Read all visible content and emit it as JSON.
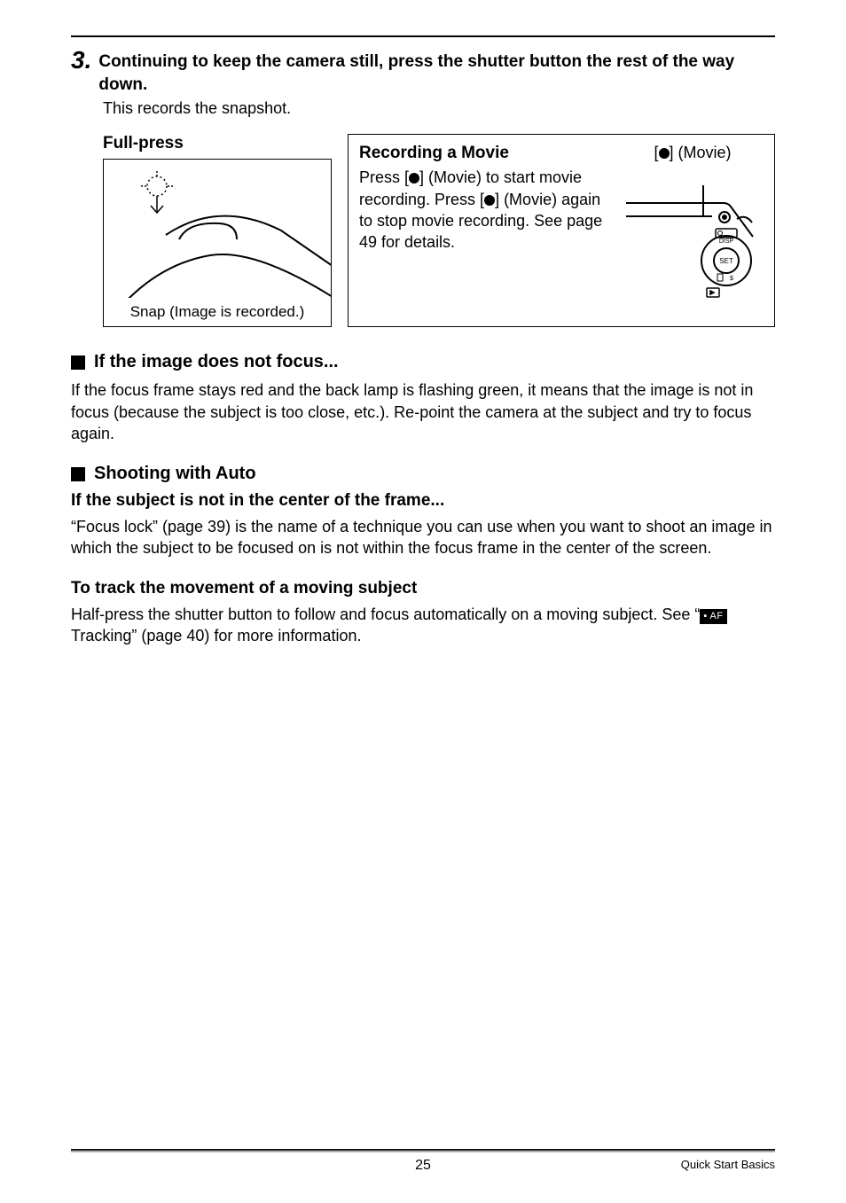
{
  "step": {
    "number": "3.",
    "instruction": "Continuing to keep the camera still, press the shutter button the rest of the way down.",
    "sub": "This records the snapshot."
  },
  "fullpress": {
    "title": "Full-press",
    "caption": "Snap (Image is recorded.)"
  },
  "movie": {
    "title": "Recording a Movie",
    "body_parts": {
      "a": "Press [",
      "b": "] (Movie) to start movie recording. Press [",
      "c": "] (Movie) again to stop movie recording. See page 49 for details."
    },
    "label_parts": {
      "a": "[",
      "b": "] (Movie)"
    }
  },
  "nofocus": {
    "heading": "If the image does not focus...",
    "body": "If the focus frame stays red and the back lamp is flashing green, it means that the image is not in focus (because the subject is too close, etc.). Re-point the camera at the subject and try to focus again."
  },
  "auto": {
    "heading": "Shooting with Auto",
    "sub1_title": "If the subject is not in the center of the frame...",
    "sub1_body": "“Focus lock” (page 39) is the name of a technique you can use when you want to shoot an image in which the subject to be focused on is not within the focus frame in the center of the screen.",
    "sub2_title": "To track the movement of a moving subject",
    "sub2_body_a": "Half-press the shutter button to follow and focus automatically on a moving subject. See “",
    "sub2_body_b": " Tracking” (page 40) for more information.",
    "tracking_icon_text": "▪ AF"
  },
  "footer": {
    "page": "25",
    "section": "Quick Start Basics"
  },
  "svg": {
    "fullpress": "<svg viewBox='0 0 258 190' width='258' height='190'><g stroke='#000' fill='none' stroke-width='2'><path d='M70 85 Q130 45 200 80 L258 120' /><path d='M0 190 Q50 120 120 108 Q170 100 258 155' /><path d='M85 90 Q95 70 130 72 Q150 73 150 90' /></g><g stroke='#000' fill='none' stroke-width='1.5'><circle cx='60' cy='30' r='11' stroke-dasharray='2 3'/><line x1='60' y1='41' x2='60' y2='60'/><polyline points='53,52 60,60 67,52'/><line x1='48' y1='30' x2='40' y2='30' stroke-dasharray='2 2'/><line x1='72' y1='30' x2='80' y2='30' stroke-dasharray='2 2'/><line x1='60' y1='19' x2='60' y2='12' stroke-dasharray='2 2'/></g></svg>",
    "camera_back": "<svg viewBox='0 0 160 150' width='160' height='150'><g stroke='#000' fill='none' stroke-width='2'><path d='M5 40 L115 40 Q120 40 123 44 L148 78'/><path d='M5 55 L102 55'/><line x1='92' y1='20' x2='92' y2='55'/><circle cx='116' cy='56' r='6'/><circle cx='116' cy='56' r='2' fill='#000'/><path d='M130 58 Q140 52 147 62'/><circle cx='118' cy='105' r='28'/><circle cx='118' cy='105' r='14'/></g><g font-family='Arial' font-size='7' text-anchor='middle' fill='#000'><text x='118' y='85'>DISP</text><text x='118' y='108' font-size='8'>SET</text><rect x='108' y='120' width='6' height='8' fill='none' stroke='#000' stroke-width='1'/><text x='124' y='127'>$</text></g><g stroke='#000' fill='none' stroke-width='1.5'><rect x='96' y='136' width='14' height='10' rx='1'/><polygon points='100,139 100,143 104,141' fill='#000'/></g><rect x='106' y='69' width='24' height='10' rx='2' fill='none' stroke='#000' stroke-width='1.5'/><circle cx='111' cy='74' r='2.5' fill='none' stroke='#000'/></svg>"
  }
}
